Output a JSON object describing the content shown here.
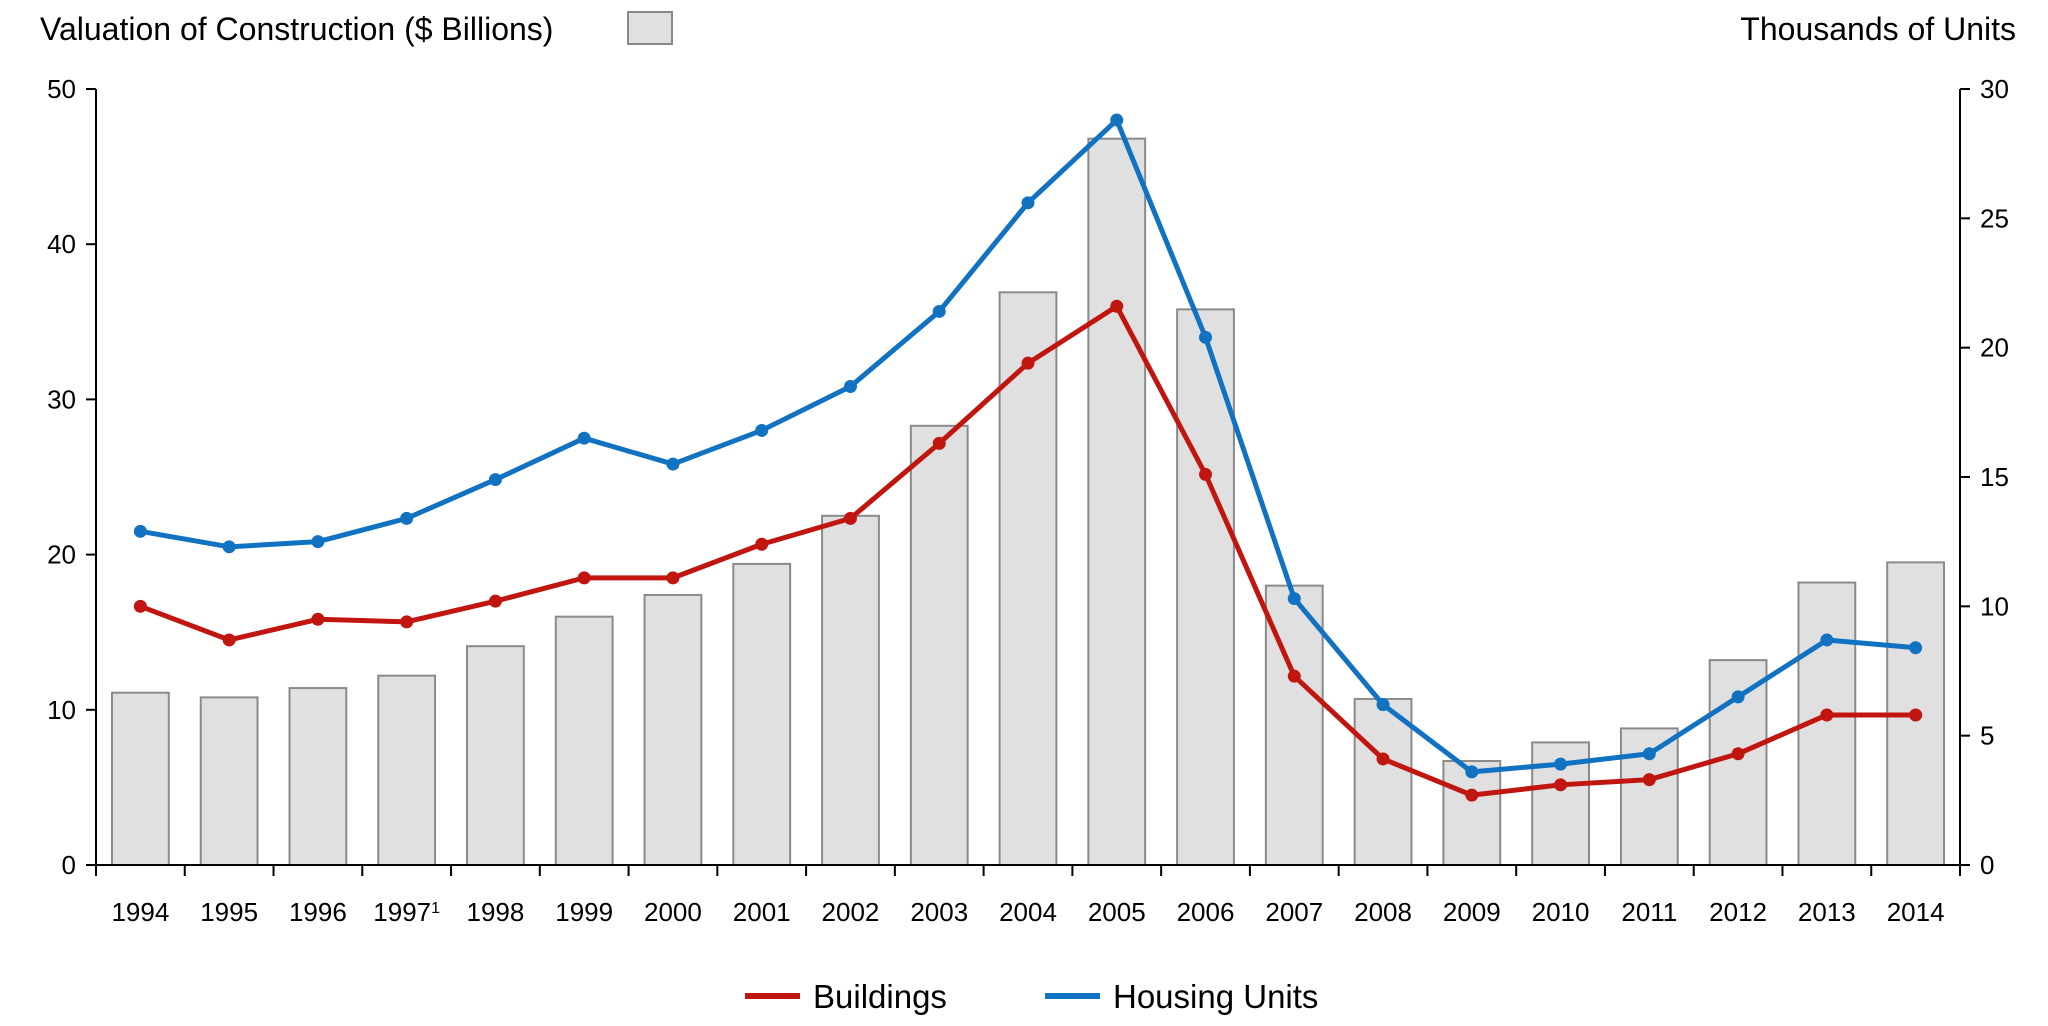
{
  "chart_data": {
    "type": "bar+line",
    "title_left": "Valuation of Construction ($ Billions)",
    "title_right": "Thousands of  Units",
    "categories": [
      "1994",
      "1995",
      "1996",
      "1997",
      "1998",
      "1999",
      "2000",
      "2001",
      "2002",
      "2003",
      "2004",
      "2005",
      "2006",
      "2007",
      "2008",
      "2009",
      "2010",
      "2011",
      "2012",
      "2013",
      "2014"
    ],
    "category_labels": [
      "1994",
      "1995",
      "1996",
      "1997",
      "1998",
      "1999",
      "2000",
      "2001",
      "2002",
      "2003",
      "2004",
      "2005",
      "2006",
      "2007",
      "2008",
      "2009",
      "2010",
      "2011",
      "2012",
      "2013",
      "2014"
    ],
    "footnote_marks": {
      "1997": "1"
    },
    "left_axis": {
      "label": "Valuation of Construction ($ Billions)",
      "range": [
        0,
        50
      ],
      "ticks": [
        0,
        10,
        20,
        30,
        40,
        50
      ]
    },
    "right_axis": {
      "label": "Thousands of  Units",
      "range": [
        0,
        30
      ],
      "ticks": [
        0,
        5,
        10,
        15,
        20,
        25,
        30
      ]
    },
    "bars": {
      "name": "Valuation of Construction ($ Billions)",
      "axis": "left",
      "color": "#e0e0e0",
      "edge_color": "#8a8a8a",
      "values": [
        11.1,
        10.8,
        11.4,
        12.2,
        14.1,
        16.0,
        17.4,
        19.4,
        22.5,
        28.3,
        36.9,
        46.8,
        35.8,
        18.0,
        10.7,
        6.7,
        7.9,
        8.8,
        13.2,
        18.2,
        19.5
      ]
    },
    "series": [
      {
        "name": "Buildings",
        "axis": "right",
        "color": "#c0160f",
        "values": [
          10.0,
          8.7,
          9.5,
          9.4,
          10.2,
          11.1,
          11.1,
          12.4,
          13.4,
          16.3,
          19.4,
          21.6,
          15.1,
          7.3,
          4.1,
          2.7,
          3.1,
          3.3,
          4.3,
          5.8,
          5.8
        ]
      },
      {
        "name": "Housing Units",
        "axis": "right",
        "color": "#1172c1",
        "values": [
          12.9,
          12.3,
          12.5,
          13.4,
          14.9,
          16.5,
          15.5,
          16.8,
          18.5,
          21.4,
          25.6,
          28.8,
          20.4,
          10.3,
          6.2,
          3.6,
          3.9,
          4.3,
          6.5,
          8.7,
          8.4
        ]
      }
    ],
    "legend": {
      "placement": "bottom-center",
      "entries": [
        "Buildings",
        "Housing Units"
      ],
      "bar_key_placement": "top-left, beside left axis title"
    },
    "grid": false
  }
}
